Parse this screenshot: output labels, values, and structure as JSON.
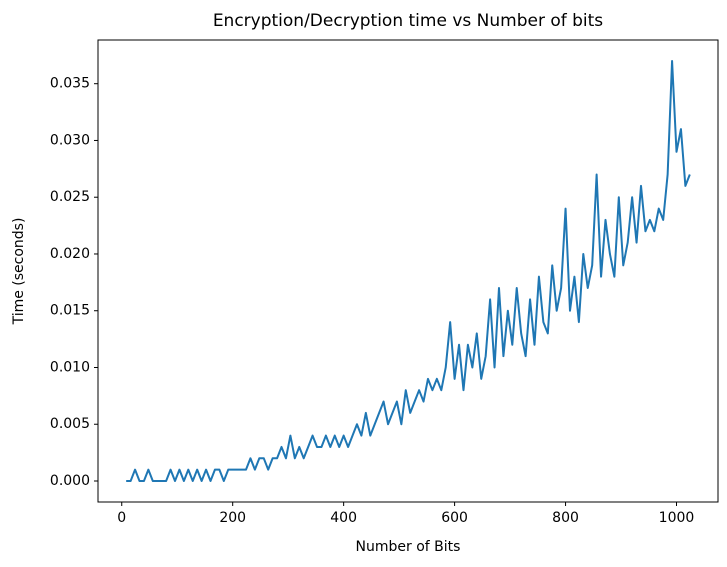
{
  "chart_data": {
    "type": "line",
    "title": "Encryption/Decryption time vs Number of bits",
    "xlabel": "Number of Bits",
    "ylabel": "Time (seconds)",
    "x": [
      8,
      16,
      24,
      32,
      40,
      48,
      56,
      64,
      72,
      80,
      88,
      96,
      104,
      112,
      120,
      128,
      136,
      144,
      152,
      160,
      168,
      176,
      184,
      192,
      200,
      208,
      216,
      224,
      232,
      240,
      248,
      256,
      264,
      272,
      280,
      288,
      296,
      304,
      312,
      320,
      328,
      336,
      344,
      352,
      360,
      368,
      376,
      384,
      392,
      400,
      408,
      416,
      424,
      432,
      440,
      448,
      456,
      464,
      472,
      480,
      488,
      496,
      504,
      512,
      520,
      528,
      536,
      544,
      552,
      560,
      568,
      576,
      584,
      592,
      600,
      608,
      616,
      624,
      632,
      640,
      648,
      656,
      664,
      672,
      680,
      688,
      696,
      704,
      712,
      720,
      728,
      736,
      744,
      752,
      760,
      768,
      776,
      784,
      792,
      800,
      808,
      816,
      824,
      832,
      840,
      848,
      856,
      864,
      872,
      880,
      888,
      896,
      904,
      912,
      920,
      928,
      936,
      944,
      952,
      960,
      968,
      976,
      984,
      992,
      1000,
      1008,
      1016,
      1024
    ],
    "series": [
      {
        "color": "#1f77b4",
        "values": [
          0,
          0,
          0.001,
          0,
          0,
          0.001,
          0,
          0,
          0,
          0,
          0.001,
          0,
          0.001,
          0,
          0.001,
          0,
          0.001,
          0,
          0.001,
          0,
          0.001,
          0.001,
          0,
          0.001,
          0.001,
          0.001,
          0.001,
          0.001,
          0.002,
          0.001,
          0.002,
          0.002,
          0.001,
          0.002,
          0.002,
          0.003,
          0.002,
          0.004,
          0.002,
          0.003,
          0.002,
          0.003,
          0.004,
          0.003,
          0.003,
          0.004,
          0.003,
          0.004,
          0.003,
          0.004,
          0.003,
          0.004,
          0.005,
          0.004,
          0.006,
          0.004,
          0.005,
          0.006,
          0.007,
          0.005,
          0.006,
          0.007,
          0.005,
          0.008,
          0.006,
          0.007,
          0.008,
          0.007,
          0.009,
          0.008,
          0.009,
          0.008,
          0.01,
          0.014,
          0.009,
          0.012,
          0.008,
          0.012,
          0.01,
          0.013,
          0.009,
          0.011,
          0.016,
          0.01,
          0.017,
          0.011,
          0.015,
          0.012,
          0.017,
          0.013,
          0.011,
          0.016,
          0.012,
          0.018,
          0.014,
          0.013,
          0.019,
          0.015,
          0.017,
          0.024,
          0.015,
          0.018,
          0.014,
          0.02,
          0.017,
          0.019,
          0.027,
          0.018,
          0.023,
          0.02,
          0.018,
          0.025,
          0.019,
          0.021,
          0.025,
          0.021,
          0.026,
          0.022,
          0.023,
          0.022,
          0.024,
          0.023,
          0.027,
          0.037,
          0.029,
          0.031,
          0.026,
          0.027
        ]
      }
    ],
    "xlim": [
      -42.8,
      1074.8
    ],
    "ylim": [
      -0.00185,
      0.03885
    ],
    "xticks": [
      0,
      200,
      400,
      600,
      800,
      1000
    ],
    "yticks": [
      {
        "value": 0,
        "label": "0.000"
      },
      0.005,
      {
        "value": 0.01,
        "label": "0.010"
      },
      0.015,
      {
        "value": 0.02,
        "label": "0.020"
      },
      0.025,
      {
        "value": 0.03,
        "label": "0.030"
      },
      0.035
    ]
  }
}
